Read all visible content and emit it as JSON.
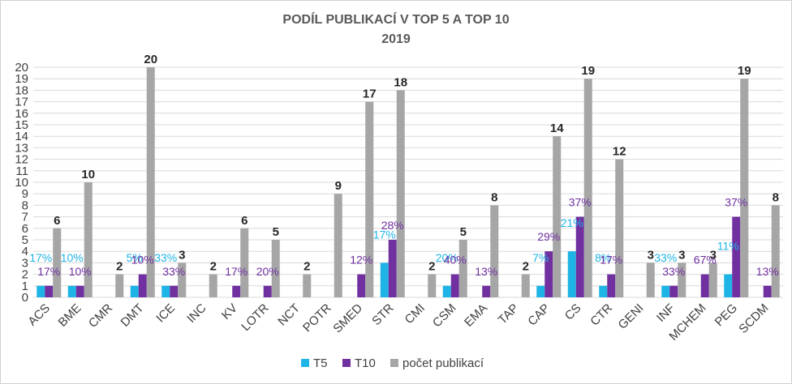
{
  "chart_data": {
    "type": "bar",
    "title": "PODÍL PUBLIKACÍ V TOP 5 A TOP 10",
    "subtitle": "2019",
    "ylim": [
      0,
      20
    ],
    "yticks": [
      "0",
      "1",
      "2",
      "3",
      "4",
      "5",
      "6",
      "7",
      "8",
      "9",
      "10",
      "11",
      "12",
      "13",
      "14",
      "15",
      "16",
      "17",
      "18",
      "19",
      "20"
    ],
    "grid": true,
    "legend_position": "bottom",
    "categories": [
      "ACS",
      "BME",
      "CMR",
      "DMT",
      "ICE",
      "INC",
      "KV",
      "LOTR",
      "NCT",
      "POTR",
      "SMED",
      "STR",
      "CMI",
      "CSM",
      "EMA",
      "TAP",
      "CAP",
      "CS",
      "CTR",
      "GENI",
      "INF",
      "MCHEM",
      "PEG",
      "SCDM"
    ],
    "series": [
      {
        "name": "T5",
        "color": "#1fb4e6",
        "values": [
          1,
          1,
          0,
          1,
          1,
          0,
          0,
          0,
          0,
          0,
          0,
          3,
          0,
          1,
          0,
          0,
          1,
          4,
          1,
          0,
          1,
          0,
          2,
          0
        ],
        "labels": [
          "17%",
          "10%",
          "",
          "5%",
          "33%",
          "",
          "",
          "",
          "",
          "",
          "",
          "17%",
          "",
          "20%",
          "",
          "",
          "7%",
          "21%",
          "8%",
          "",
          "33%",
          "",
          "11%",
          ""
        ]
      },
      {
        "name": "T10",
        "color": "#7030a0",
        "values": [
          1,
          1,
          0,
          2,
          1,
          0,
          1,
          1,
          0,
          0,
          2,
          5,
          0,
          2,
          1,
          0,
          4,
          7,
          2,
          0,
          1,
          2,
          7,
          1
        ],
        "labels": [
          "17%",
          "10%",
          "",
          "10%",
          "33%",
          "",
          "17%",
          "20%",
          "",
          "",
          "12%",
          "28%",
          "",
          "40%",
          "13%",
          "",
          "29%",
          "37%",
          "17%",
          "",
          "33%",
          "67%",
          "37%",
          "13%"
        ]
      },
      {
        "name": "počet publikací",
        "color": "#a6a6a6",
        "values": [
          6,
          10,
          2,
          20,
          3,
          2,
          6,
          5,
          2,
          9,
          17,
          18,
          2,
          5,
          8,
          2,
          14,
          19,
          12,
          3,
          3,
          3,
          19,
          8
        ],
        "labels": [
          "6",
          "10",
          "2",
          "20",
          "3",
          "2",
          "6",
          "5",
          "2",
          "9",
          "17",
          "18",
          "2",
          "5",
          "8",
          "2",
          "14",
          "19",
          "12",
          "3",
          "3",
          "3",
          "19",
          "8"
        ]
      }
    ]
  }
}
